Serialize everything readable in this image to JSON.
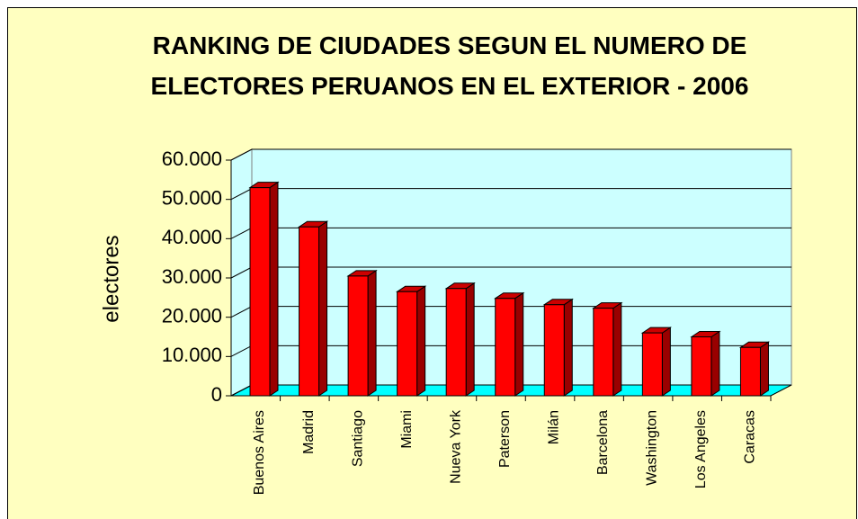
{
  "chart_data": {
    "type": "bar3d",
    "title": "RANKING DE CIUDADES SEGUN EL NUMERO DE ELECTORES PERUANOS EN EL EXTERIOR - 2006",
    "ylabel": "electores",
    "categories": [
      "Buenos Aires",
      "Madrid",
      "Santiago",
      "Miami",
      "Nueva York",
      "Paterson",
      "Milán",
      "Barcelona",
      "Washington",
      "Los Angeles",
      "Caracas"
    ],
    "values": [
      53000,
      43000,
      30500,
      26500,
      27300,
      24800,
      23200,
      22300,
      16000,
      15000,
      12300
    ],
    "color": "#ff0000",
    "ylim": [
      0,
      60000
    ],
    "yticks": [
      0,
      {
        "value": 10000,
        "label": "10.000"
      },
      {
        "value": 20000,
        "label": "20.000"
      },
      {
        "value": 30000,
        "label": "30.000"
      },
      {
        "value": 40000,
        "label": "40.000"
      },
      {
        "value": 50000,
        "label": "50.000"
      },
      {
        "value": 60000,
        "label": "60.000"
      }
    ],
    "grid": true
  }
}
